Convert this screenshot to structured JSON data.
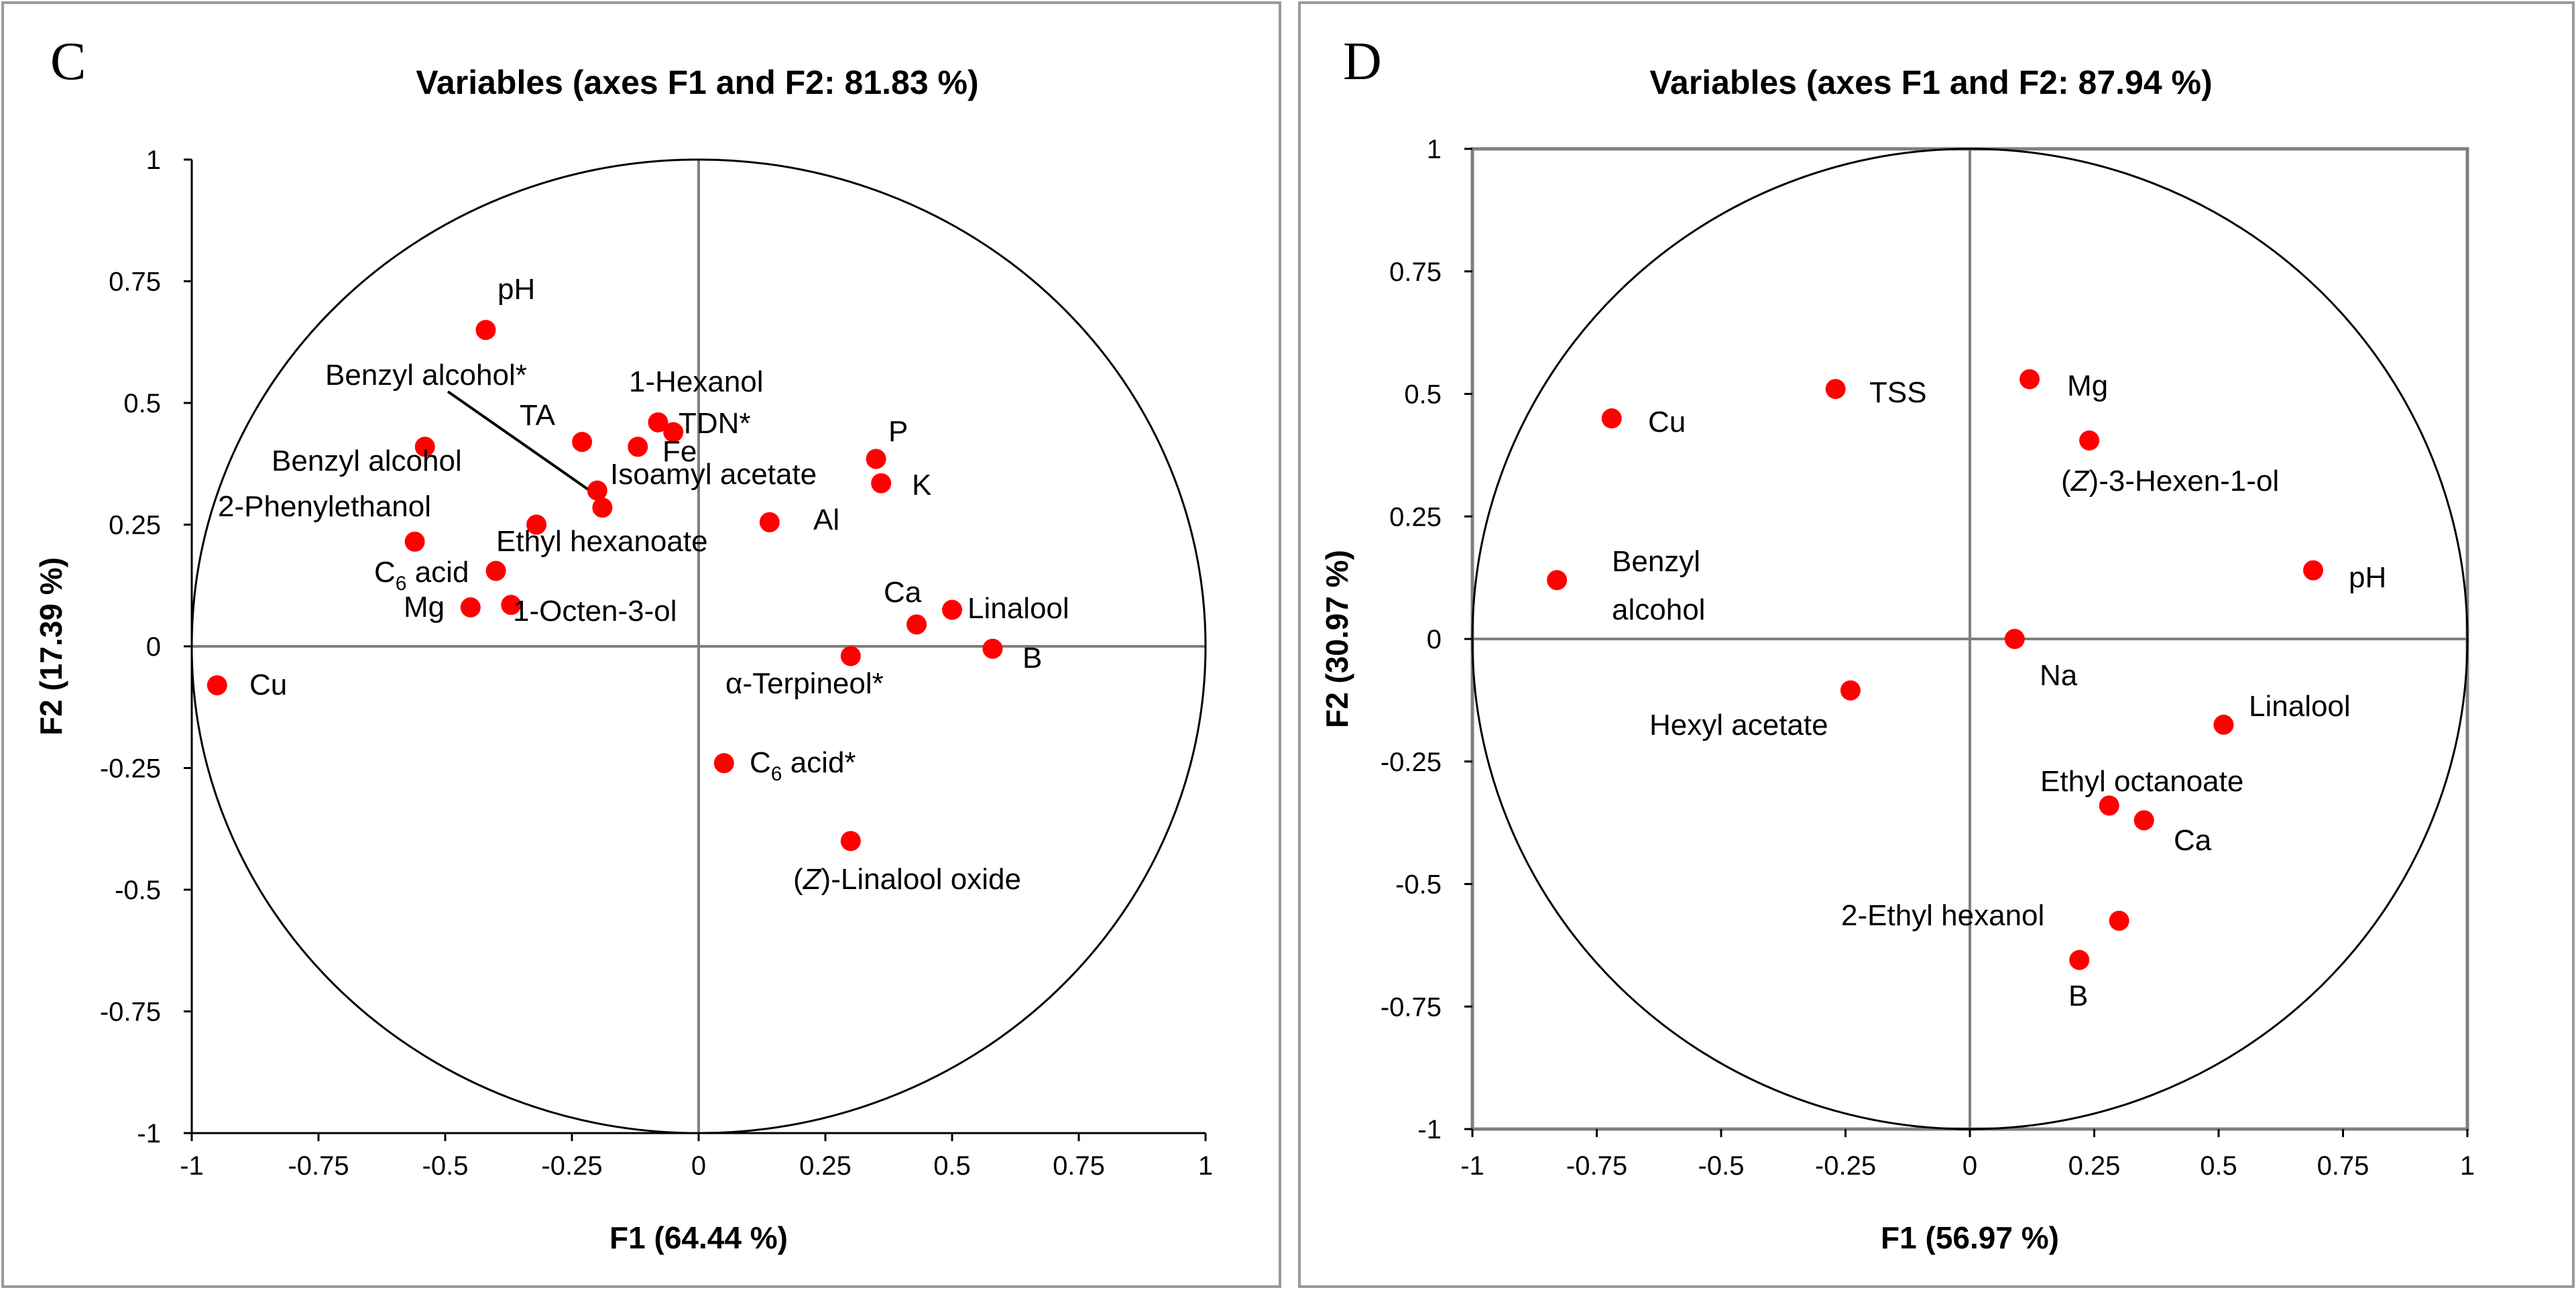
{
  "chart_data": [
    {
      "type": "scatter",
      "panel": "C",
      "title": "Variables (axes F1 and F2: 81.83 %)",
      "xlabel": "F1 (64.44 %)",
      "ylabel": "F2 (17.39 %)",
      "xlim": [
        -1,
        1
      ],
      "ylim": [
        -1,
        1
      ],
      "xticks": [
        "-1",
        "-0.75",
        "-0.5",
        "-0.25",
        "0",
        "0.25",
        "0.5",
        "0.75",
        "1"
      ],
      "yticks": [
        "1",
        "0.75",
        "0.5",
        "0.25",
        "0",
        "-0.25",
        "-0.5",
        "-0.75",
        "-1"
      ],
      "grid": false,
      "correlation_circle": true,
      "marker_color": "#ff0000",
      "points": [
        {
          "label": "pH",
          "x": -0.42,
          "y": 0.65
        },
        {
          "label": "TA",
          "x": -0.23,
          "y": 0.42
        },
        {
          "label": "1-Hexanol",
          "x": -0.08,
          "y": 0.46
        },
        {
          "label": "TDN*",
          "x": -0.05,
          "y": 0.44
        },
        {
          "label": "Fe",
          "x": -0.12,
          "y": 0.41
        },
        {
          "label": "Benzyl alcohol*",
          "x": -0.19,
          "y": 0.285
        },
        {
          "label": "Isoamyl acetate",
          "x": -0.2,
          "y": 0.32
        },
        {
          "label": "Benzyl alcohol",
          "x": -0.54,
          "y": 0.41
        },
        {
          "label": "2-Phenylethanol",
          "x": -0.56,
          "y": 0.215
        },
        {
          "label": "Ethyl hexanoate",
          "x": -0.32,
          "y": 0.25
        },
        {
          "label": "C₆ acid",
          "x": -0.4,
          "y": 0.155
        },
        {
          "label": "1-Octen-3-ol",
          "x": -0.37,
          "y": 0.085
        },
        {
          "label": "Mg",
          "x": -0.45,
          "y": 0.08
        },
        {
          "label": "P",
          "x": 0.35,
          "y": 0.385
        },
        {
          "label": "K",
          "x": 0.36,
          "y": 0.335
        },
        {
          "label": "Al",
          "x": 0.14,
          "y": 0.255
        },
        {
          "label": "Ca",
          "x": 0.43,
          "y": 0.045
        },
        {
          "label": "Linalool",
          "x": 0.5,
          "y": 0.075
        },
        {
          "label": "B",
          "x": 0.58,
          "y": -0.005
        },
        {
          "label": "α-Terpineol*",
          "x": 0.3,
          "y": -0.02
        },
        {
          "label": "Cu",
          "x": -0.95,
          "y": -0.08
        },
        {
          "label": "C₆ acid*",
          "x": 0.05,
          "y": -0.24
        },
        {
          "label": "(Z)-Linalool oxide",
          "x": 0.3,
          "y": -0.4
        }
      ],
      "annotation": "Benzyl alcohol*"
    },
    {
      "type": "scatter",
      "panel": "D",
      "title": "Variables (axes F1 and F2: 87.94 %)",
      "xlabel": "F1 (56.97 %)",
      "ylabel": "F2 (30.97 %)",
      "xlim": [
        -1,
        1
      ],
      "ylim": [
        -1,
        1
      ],
      "xticks": [
        "-1",
        "-0.75",
        "-0.5",
        "-0.25",
        "0",
        "0.25",
        "0.5",
        "0.75",
        "1"
      ],
      "yticks": [
        "1",
        "0.75",
        "0.5",
        "0.25",
        "0",
        "-0.25",
        "-0.5",
        "-0.75",
        "-1"
      ],
      "grid": false,
      "correlation_circle": true,
      "marker_color": "#ff0000",
      "points": [
        {
          "label": "Cu",
          "x": -0.72,
          "y": 0.45
        },
        {
          "label": "TSS",
          "x": -0.27,
          "y": 0.51
        },
        {
          "label": "Mg",
          "x": 0.12,
          "y": 0.53
        },
        {
          "label": "(Z)-3-Hexen-1-ol",
          "x": 0.24,
          "y": 0.405
        },
        {
          "label": "Benzyl alcohol",
          "x": -0.83,
          "y": 0.12
        },
        {
          "label": "pH",
          "x": 0.69,
          "y": 0.14
        },
        {
          "label": "Na",
          "x": 0.09,
          "y": 0.0
        },
        {
          "label": "Hexyl acetate",
          "x": -0.24,
          "y": -0.105
        },
        {
          "label": "Linalool",
          "x": 0.51,
          "y": -0.175
        },
        {
          "label": "Ethyl octanoate",
          "x": 0.28,
          "y": -0.34
        },
        {
          "label": "Ca",
          "x": 0.35,
          "y": -0.37
        },
        {
          "label": "2-Ethyl hexanol",
          "x": 0.3,
          "y": -0.575
        },
        {
          "label": "B",
          "x": 0.22,
          "y": -0.655
        }
      ]
    }
  ]
}
